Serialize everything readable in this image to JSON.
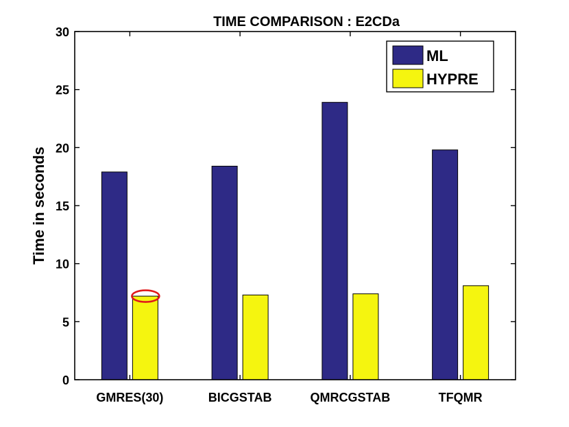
{
  "chart_data": {
    "type": "bar",
    "title": "TIME COMPARISON : E2CDa",
    "xlabel": "",
    "ylabel": "Time in seconds",
    "ylim": [
      0,
      30
    ],
    "yticks": [
      0,
      5,
      10,
      15,
      20,
      25,
      30
    ],
    "categories": [
      "GMRES(30)",
      "BICGSTAB",
      "QMRCGSTAB",
      "TFQMR"
    ],
    "series": [
      {
        "name": "ML",
        "color": "#2E2A86",
        "values": [
          17.9,
          18.4,
          23.9,
          19.8
        ]
      },
      {
        "name": "HYPRE",
        "color": "#F5F50F",
        "values": [
          7.2,
          7.3,
          7.4,
          8.1
        ]
      }
    ],
    "legend_position": "top-right",
    "grid": false,
    "annotations": [
      {
        "type": "ellipse",
        "color": "#E0191B",
        "category": "GMRES(30)",
        "series": "HYPRE",
        "value": 7.2
      }
    ]
  }
}
